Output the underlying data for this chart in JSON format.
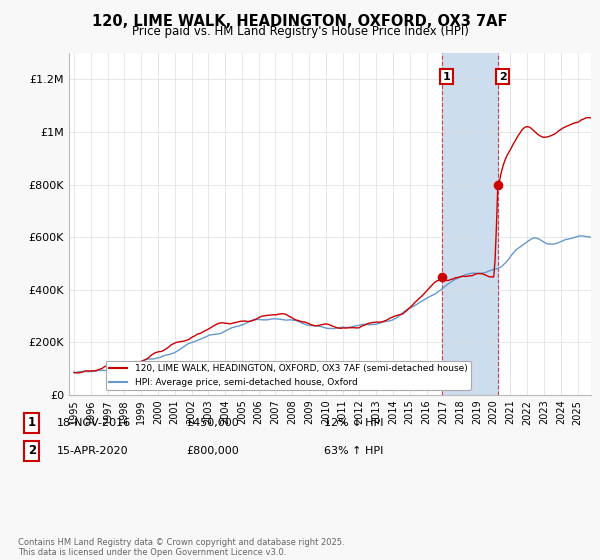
{
  "title": "120, LIME WALK, HEADINGTON, OXFORD, OX3 7AF",
  "subtitle": "Price paid vs. HM Land Registry's House Price Index (HPI)",
  "ylim": [
    0,
    1300000
  ],
  "yticks": [
    0,
    200000,
    400000,
    600000,
    800000,
    1000000,
    1200000
  ],
  "ytick_labels": [
    "£0",
    "£200K",
    "£400K",
    "£600K",
    "£800K",
    "£1M",
    "£1.2M"
  ],
  "sale1_year": 2016.88,
  "sale1_price": 450000,
  "sale2_year": 2020.29,
  "sale2_price": 800000,
  "hpi_color": "#6699cc",
  "price_color": "#cc0000",
  "shade_color": "#ccddf0",
  "annotation1_date": "18-NOV-2016",
  "annotation1_price": "£450,000",
  "annotation1_pct": "12% ↓ HPI",
  "annotation2_date": "15-APR-2020",
  "annotation2_price": "£800,000",
  "annotation2_pct": "63% ↑ HPI",
  "footer": "Contains HM Land Registry data © Crown copyright and database right 2025.\nThis data is licensed under the Open Government Licence v3.0.",
  "background_color": "#f8f8f8",
  "plot_bg_color": "#ffffff",
  "legend_label_red": "120, LIME WALK, HEADINGTON, OXFORD, OX3 7AF (semi-detached house)",
  "legend_label_blue": "HPI: Average price, semi-detached house, Oxford"
}
